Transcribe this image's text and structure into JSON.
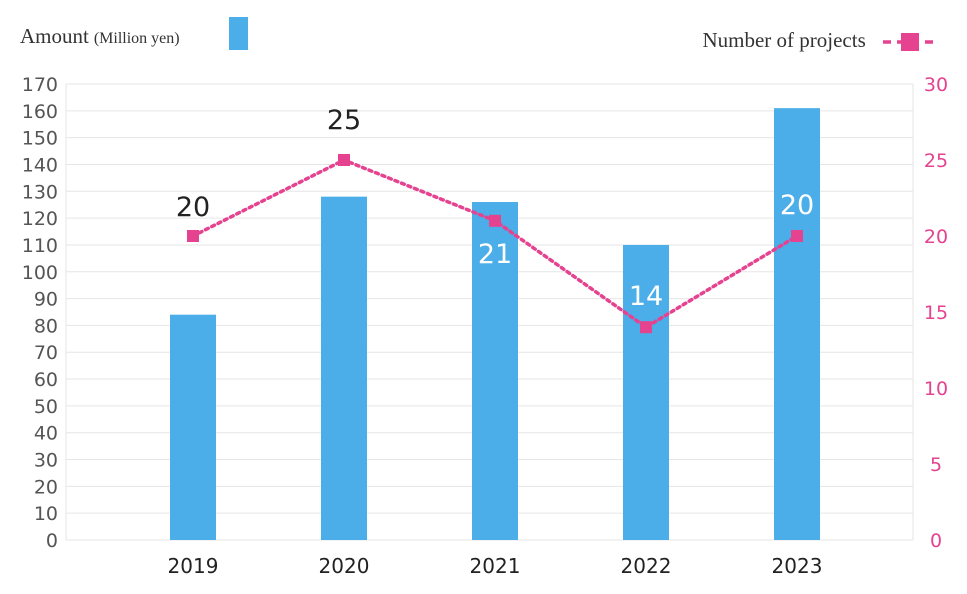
{
  "legend": {
    "amount_label": "Amount",
    "amount_unit": "(Million yen)",
    "projects_label": "Number of projects"
  },
  "colors": {
    "bar": "#4baee8",
    "line": "#e5428f",
    "grid": "#e6e6e6",
    "left_axis_text": "#555555",
    "right_axis_text": "#e5428f",
    "x_axis_text": "#222222"
  },
  "chart_data": {
    "type": "bar",
    "categories": [
      "2019",
      "2020",
      "2021",
      "2022",
      "2023"
    ],
    "series": [
      {
        "name": "Amount",
        "axis": "left",
        "type": "bar",
        "values": [
          84,
          128,
          126,
          110,
          161
        ]
      },
      {
        "name": "Number of projects",
        "axis": "right",
        "type": "line",
        "style": "dotted",
        "marker": "square",
        "values": [
          20,
          25,
          21,
          14,
          20
        ],
        "labels": [
          "20",
          "25",
          "21",
          "14",
          "20"
        ]
      }
    ],
    "y_left": {
      "min": 0,
      "max": 170,
      "step": 10,
      "ticks": [
        "0",
        "10",
        "20",
        "30",
        "40",
        "50",
        "60",
        "70",
        "80",
        "90",
        "100",
        "110",
        "120",
        "130",
        "140",
        "150",
        "160",
        "170"
      ]
    },
    "y_right": {
      "min": 0,
      "max": 30,
      "step": 5,
      "ticks": [
        "0",
        "5",
        "10",
        "15",
        "20",
        "25",
        "30"
      ]
    },
    "grid": true
  }
}
